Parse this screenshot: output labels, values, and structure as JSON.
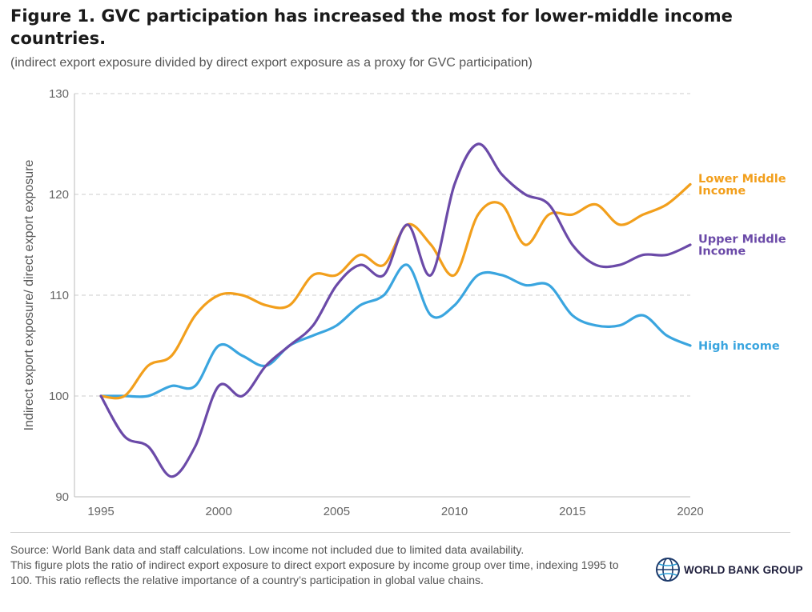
{
  "header": {
    "title": "Figure 1. GVC participation has increased the most for lower-middle income countries.",
    "subtitle": "(indirect export exposure divided by direct export exposure as a proxy for GVC participation)"
  },
  "footer": {
    "source": "Source: World Bank data and staff calculations. Low income not included due to limited data availability.",
    "note": "This figure plots the ratio of indirect export exposure to direct export exposure by income group over time, indexing 1995 to 100. This ratio reflects the relative importance of a country’s participation in global value chains.",
    "logo_text": "WORLD BANK GROUP"
  },
  "chart_data": {
    "type": "line",
    "title": "Figure 1. GVC participation has increased the most for lower-middle income countries.",
    "subtitle": "(indirect export exposure divided by direct export exposure as a proxy for GVC participation)",
    "xlabel": "",
    "ylabel": "Indirect export exposure/ direct export exposure",
    "xlim": [
      1995,
      2020
    ],
    "ylim": [
      90,
      130
    ],
    "xticks": [
      1995,
      2000,
      2005,
      2010,
      2015,
      2020
    ],
    "yticks": [
      90,
      100,
      110,
      120,
      130
    ],
    "grid": "horizontal dashed",
    "legend": "direct labels at line ends (right)",
    "x": [
      1995,
      1996,
      1997,
      1998,
      1999,
      2000,
      2001,
      2002,
      2003,
      2004,
      2005,
      2006,
      2007,
      2008,
      2009,
      2010,
      2011,
      2012,
      2013,
      2014,
      2015,
      2016,
      2017,
      2018,
      2019,
      2020
    ],
    "series": [
      {
        "name": "Lower Middle Income",
        "label_lines": [
          "Lower Middle",
          "Income"
        ],
        "color": "#F29F1C",
        "values": [
          100,
          100,
          103,
          104,
          108,
          110,
          110,
          109,
          109,
          112,
          112,
          114,
          113,
          117,
          115,
          112,
          118,
          119,
          115,
          118,
          118,
          119,
          117,
          118,
          119,
          121
        ]
      },
      {
        "name": "Upper Middle Income",
        "label_lines": [
          "Upper Middle",
          "Income"
        ],
        "color": "#6B4AA8",
        "values": [
          100,
          96,
          95,
          92,
          95,
          101,
          100,
          103,
          105,
          107,
          111,
          113,
          112,
          117,
          112,
          121,
          125,
          122,
          120,
          119,
          115,
          113,
          113,
          114,
          114,
          115
        ]
      },
      {
        "name": "High income",
        "label_lines": [
          "High income"
        ],
        "color": "#3AA5DF",
        "values": [
          100,
          100,
          100,
          101,
          101,
          105,
          104,
          103,
          105,
          106,
          107,
          109,
          110,
          113,
          108,
          109,
          112,
          112,
          111,
          111,
          108,
          107,
          107,
          108,
          106,
          105
        ]
      }
    ]
  }
}
